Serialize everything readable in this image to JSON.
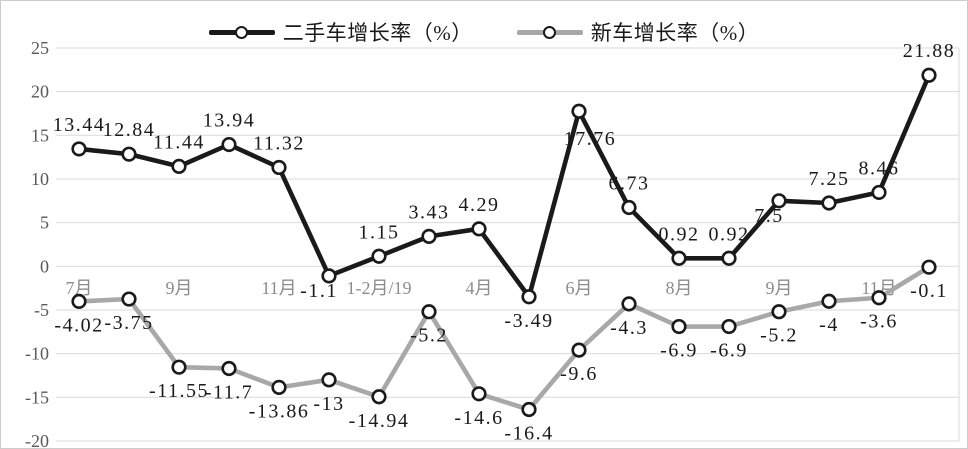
{
  "chart_data": {
    "type": "line",
    "title": "",
    "xlabel": "",
    "ylabel": "",
    "ylim": [
      -20,
      25
    ],
    "y_ticks": [
      25,
      20,
      15,
      10,
      5,
      0,
      -5,
      -10,
      -15,
      -20
    ],
    "grid": "horizontal",
    "legend_position": "top-center",
    "x_tick_labels": [
      {
        "index": 0,
        "label": "7月"
      },
      {
        "index": 2,
        "label": "9月"
      },
      {
        "index": 4,
        "label": "11月"
      },
      {
        "index": 6,
        "label": "1-2月/19"
      },
      {
        "index": 8,
        "label": "4月"
      },
      {
        "index": 10,
        "label": "6月"
      },
      {
        "index": 12,
        "label": "8月"
      },
      {
        "index": 14,
        "label": "9月"
      },
      {
        "index": 16,
        "label": "11月"
      }
    ],
    "series": [
      {
        "name": "二手车增长率（%）",
        "color": "#1a1a1a",
        "values": [
          13.44,
          12.84,
          11.44,
          13.94,
          11.32,
          -1.1,
          1.15,
          3.43,
          4.29,
          -3.49,
          17.76,
          6.73,
          0.92,
          0.92,
          7.5,
          7.25,
          8.46,
          21.88
        ],
        "label_positions": [
          "above",
          "above",
          "above",
          "above",
          "above",
          "below-left",
          "above",
          "above",
          "above",
          "below",
          "below-right",
          "above",
          "above",
          "above",
          "below-left",
          "above",
          "above",
          "above"
        ]
      },
      {
        "name": "新车增长率（%）",
        "color": "#a8a8a8",
        "values": [
          -4.02,
          -3.75,
          -11.55,
          -11.7,
          -13.86,
          -13,
          -14.94,
          -5.2,
          -14.6,
          -16.4,
          -9.6,
          -4.3,
          -6.9,
          -6.9,
          -5.2,
          -4,
          -3.6,
          -0.1
        ],
        "label_positions": [
          "below",
          "below",
          "below",
          "below",
          "below",
          "below",
          "below",
          "below",
          "below",
          "below",
          "below",
          "below",
          "below",
          "below",
          "below",
          "below",
          "below",
          "below"
        ]
      }
    ]
  },
  "colors": {
    "grid": "#d9d9d9",
    "y_tick_text": "#595959",
    "x_tick_text": "#8c8c8c",
    "data_label_text": "#1a1a1a",
    "marker_fill": "#ffffff",
    "marker_ring": "#1a1a1a"
  }
}
